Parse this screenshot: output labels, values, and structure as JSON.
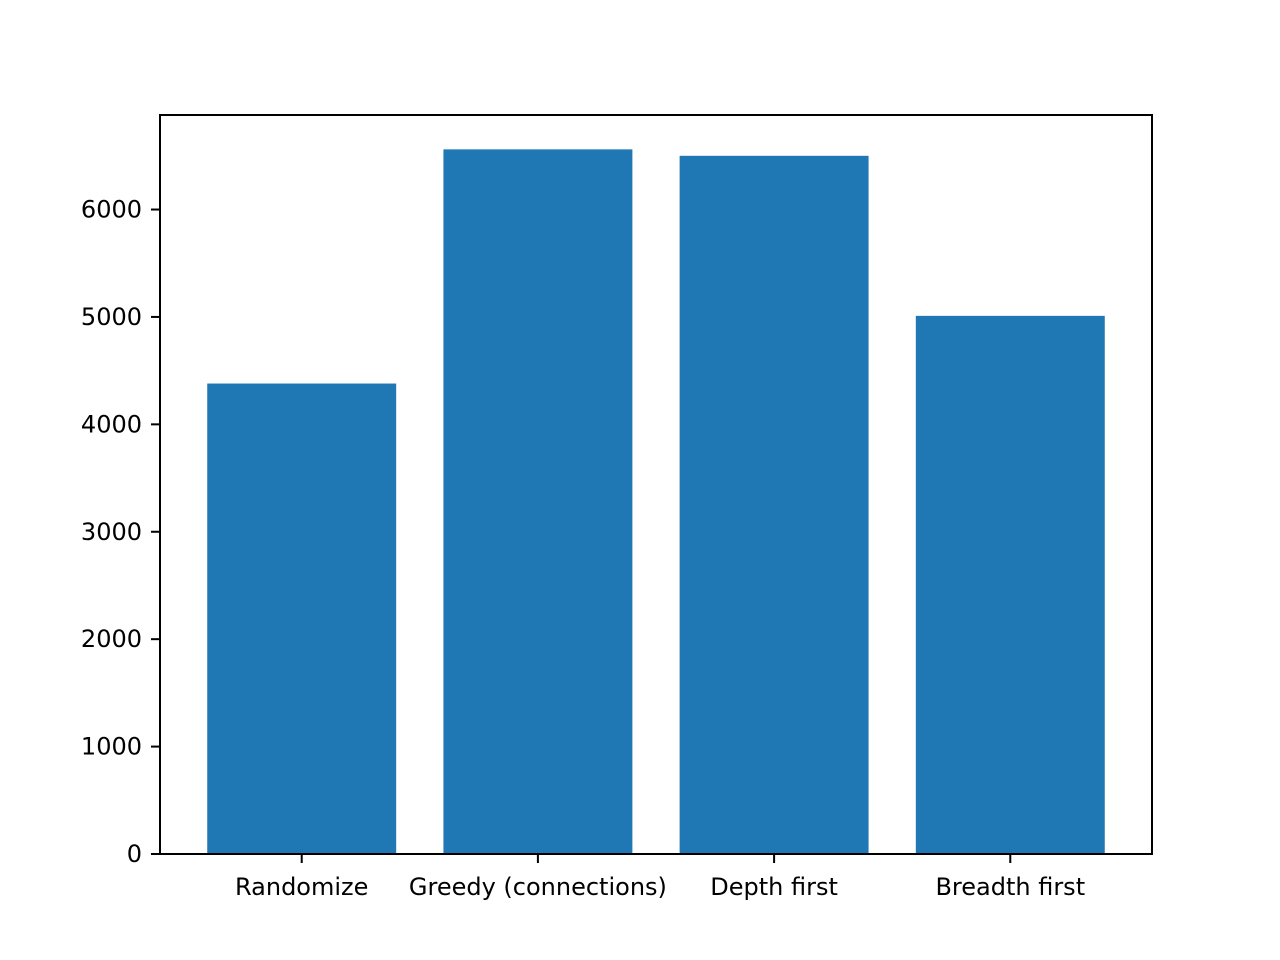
{
  "chart_data": {
    "type": "bar",
    "categories": [
      "Randomize",
      "Greedy (connections)",
      "Depth first",
      "Breadth first"
    ],
    "values": [
      4380,
      6560,
      6500,
      5010
    ],
    "ylim": [
      0,
      6880
    ],
    "yticks": [
      0,
      1000,
      2000,
      3000,
      4000,
      5000,
      6000
    ],
    "bar_color": "#1f77b4",
    "grid": false,
    "title": "",
    "xlabel": "",
    "ylabel": ""
  }
}
